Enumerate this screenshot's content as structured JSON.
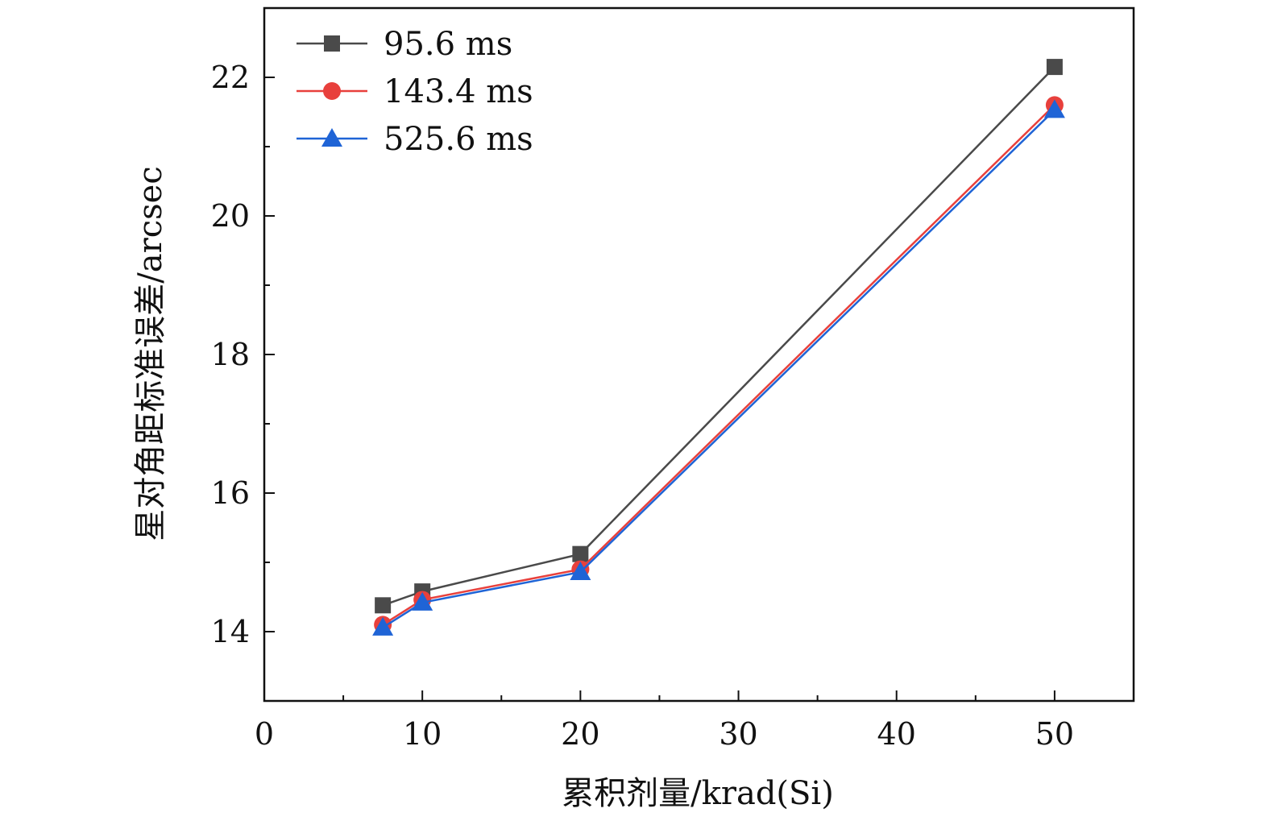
{
  "chart_data": {
    "type": "line",
    "title": "",
    "xlabel": "累积剂量/krad(Si)",
    "ylabel": "星对角距标准误差/arcsec",
    "xlim": [
      0,
      55
    ],
    "ylim": [
      13,
      23
    ],
    "xticks": [
      0,
      10,
      20,
      30,
      40,
      50
    ],
    "yticks": [
      14,
      16,
      18,
      20,
      22
    ],
    "x_minor_step": 5,
    "y_minor_step": 1,
    "legend_position": "top-left",
    "grid": false,
    "x": [
      7.5,
      10,
      20,
      50
    ],
    "series": [
      {
        "name": "95.6 ms",
        "color": "#4a4a4a",
        "marker": "square",
        "values": [
          14.38,
          14.58,
          15.12,
          22.15
        ]
      },
      {
        "name": "143.4 ms",
        "color": "#e8403c",
        "marker": "circle",
        "values": [
          14.1,
          14.46,
          14.9,
          21.6
        ]
      },
      {
        "name": "525.6 ms",
        "color": "#1f64d6",
        "marker": "triangle",
        "values": [
          14.06,
          14.42,
          14.86,
          21.53
        ]
      }
    ]
  }
}
